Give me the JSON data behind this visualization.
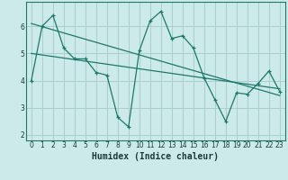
{
  "line1_x": [
    0,
    1,
    2,
    3,
    4,
    5,
    6,
    7,
    8,
    9,
    10,
    11,
    12,
    13,
    14,
    15,
    16,
    17,
    18,
    19,
    20,
    21,
    22,
    23
  ],
  "line1_y": [
    4.0,
    6.0,
    6.4,
    5.2,
    4.8,
    4.8,
    4.3,
    4.2,
    2.65,
    2.3,
    5.1,
    6.2,
    6.55,
    5.55,
    5.65,
    5.2,
    4.1,
    3.3,
    2.5,
    3.55,
    3.5,
    3.9,
    4.35,
    3.6
  ],
  "trend1_x": [
    0,
    23
  ],
  "trend1_y": [
    6.1,
    3.45
  ],
  "trend2_x": [
    0,
    23
  ],
  "trend2_y": [
    5.0,
    3.7
  ],
  "line_color": "#1a7a6a",
  "bg_color": "#cceaea",
  "grid_color": "#aacece",
  "xlabel": "Humidex (Indice chaleur)",
  "xlim": [
    -0.5,
    23.5
  ],
  "ylim": [
    1.8,
    6.9
  ],
  "yticks": [
    2,
    3,
    4,
    5,
    6
  ],
  "xticks": [
    0,
    1,
    2,
    3,
    4,
    5,
    6,
    7,
    8,
    9,
    10,
    11,
    12,
    13,
    14,
    15,
    16,
    17,
    18,
    19,
    20,
    21,
    22,
    23
  ],
  "tick_fontsize": 5.5,
  "label_fontsize": 7.0
}
